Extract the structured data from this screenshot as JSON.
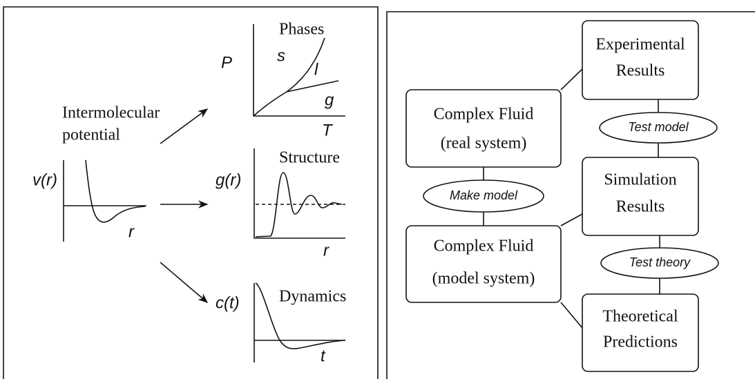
{
  "left": {
    "source": {
      "label_lines": [
        "Intermolecular",
        "potential"
      ],
      "y_label": "v(r)",
      "x_label": "r"
    },
    "plots": [
      {
        "title": "Phases",
        "y_label": "P",
        "x_label": "T",
        "phase_labels": [
          "s",
          "l",
          "g"
        ]
      },
      {
        "title": "Structure",
        "y_label": "g(r)",
        "x_label": "r"
      },
      {
        "title": "Dynamics",
        "y_label": "c(t)",
        "x_label": "t"
      }
    ]
  },
  "right": {
    "boxes": [
      {
        "lines": [
          "Experimental",
          "Results"
        ]
      },
      {
        "lines": [
          "Complex Fluid",
          "(real system)"
        ]
      },
      {
        "lines": [
          "Simulation",
          "Results"
        ]
      },
      {
        "lines": [
          "Complex Fluid",
          "(model system)"
        ]
      },
      {
        "lines": [
          "Theoretical",
          "Predictions"
        ]
      }
    ],
    "ellipses": [
      {
        "label": "Test model"
      },
      {
        "label": "Make model"
      },
      {
        "label": "Test theory"
      }
    ]
  }
}
